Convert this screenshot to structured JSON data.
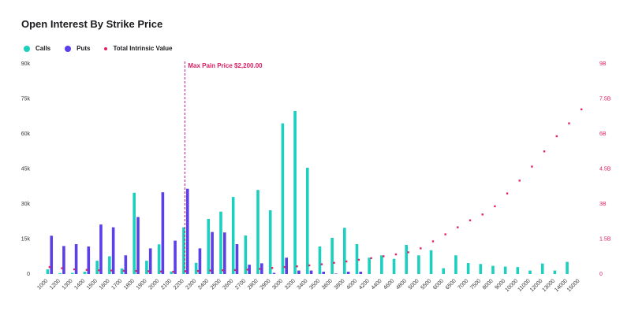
{
  "colors": {
    "calls": "#1ccfbe",
    "puts": "#5b3fe8",
    "tiv": "#e0245e",
    "maxpain": "#c2188b"
  },
  "chart_data": {
    "type": "bar",
    "title": "Open Interest By Strike Price",
    "legend": [
      "Calls",
      "Puts",
      "Total Intrinsic Value"
    ],
    "legend_position": "top-left",
    "categories": [
      "1000",
      "1200",
      "1300",
      "1400",
      "1500",
      "1600",
      "1700",
      "1800",
      "1900",
      "2000",
      "2100",
      "2200",
      "2300",
      "2400",
      "2500",
      "2600",
      "2700",
      "2800",
      "2900",
      "3000",
      "3200",
      "3400",
      "3500",
      "3600",
      "3800",
      "4000",
      "4200",
      "4400",
      "4600",
      "4800",
      "5000",
      "5500",
      "6000",
      "6500",
      "7000",
      "7500",
      "8000",
      "9000",
      "10000",
      "11000",
      "12000",
      "13000",
      "14000",
      "15000"
    ],
    "y_left": {
      "ticks": [
        "0",
        "15k",
        "30k",
        "45k",
        "60k",
        "75k",
        "90k"
      ],
      "ylim": [
        0,
        90000
      ]
    },
    "y_right": {
      "ticks": [
        "0",
        "1.5B",
        "3B",
        "4.5B",
        "6B",
        "7.5B",
        "9B"
      ],
      "ylim": [
        0,
        9000000000
      ]
    },
    "series": [
      {
        "name": "Calls",
        "type": "bar",
        "values": [
          2000,
          400,
          500,
          1000,
          5700,
          7600,
          2400,
          34800,
          5700,
          12700,
          1100,
          20000,
          4800,
          23600,
          26700,
          33000,
          16500,
          36000,
          27300,
          64500,
          69800,
          45500,
          11800,
          15500,
          19800,
          12800,
          7000,
          8000,
          6500,
          12500,
          8000,
          10200,
          2500,
          8000,
          4700,
          4300,
          3500,
          3200,
          3000,
          1500,
          4500,
          1500,
          5200,
          0
        ]
      },
      {
        "name": "Puts",
        "type": "bar",
        "values": [
          16400,
          12000,
          12800,
          11800,
          21200,
          20000,
          8000,
          24400,
          11000,
          35000,
          14300,
          36500,
          11000,
          18000,
          17800,
          12800,
          4000,
          4600,
          500,
          7000,
          1500,
          1500,
          1000,
          200,
          1000,
          1000,
          0,
          0,
          0,
          0,
          0,
          0,
          0,
          0,
          0,
          0,
          0,
          0,
          0,
          0,
          0,
          0,
          0,
          0
        ]
      },
      {
        "name": "Total Intrinsic Value",
        "type": "scatter",
        "values": [
          300000000,
          250000000,
          200000000,
          180000000,
          160000000,
          150000000,
          140000000,
          130000000,
          120000000,
          110000000,
          100000000,
          120000000,
          130000000,
          150000000,
          160000000,
          170000000,
          190000000,
          220000000,
          260000000,
          300000000,
          330000000,
          370000000,
          420000000,
          480000000,
          540000000,
          610000000,
          680000000,
          760000000,
          840000000,
          930000000,
          1100000000,
          1400000000,
          1700000000,
          2000000000,
          2300000000,
          2550000000,
          2900000000,
          3450000000,
          4000000000,
          4600000000,
          5250000000,
          5900000000,
          6450000000,
          7050000000
        ]
      }
    ],
    "annotation": {
      "label": "Max Pain Price $2,200.00",
      "category": "2200"
    },
    "grid": false
  }
}
